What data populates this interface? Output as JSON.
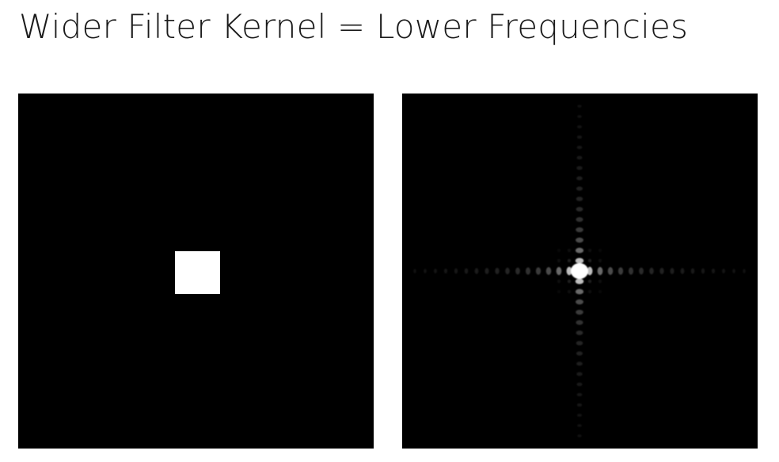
{
  "slide": {
    "title": "Wider Filter Kernel = Lower Frequencies"
  },
  "panels": {
    "spatial": {
      "kernel_shape": "box",
      "kernel_color": "#ffffff",
      "background": "#000000"
    },
    "frequency": {
      "pattern": "sinc-cross",
      "background": "#000000"
    }
  }
}
